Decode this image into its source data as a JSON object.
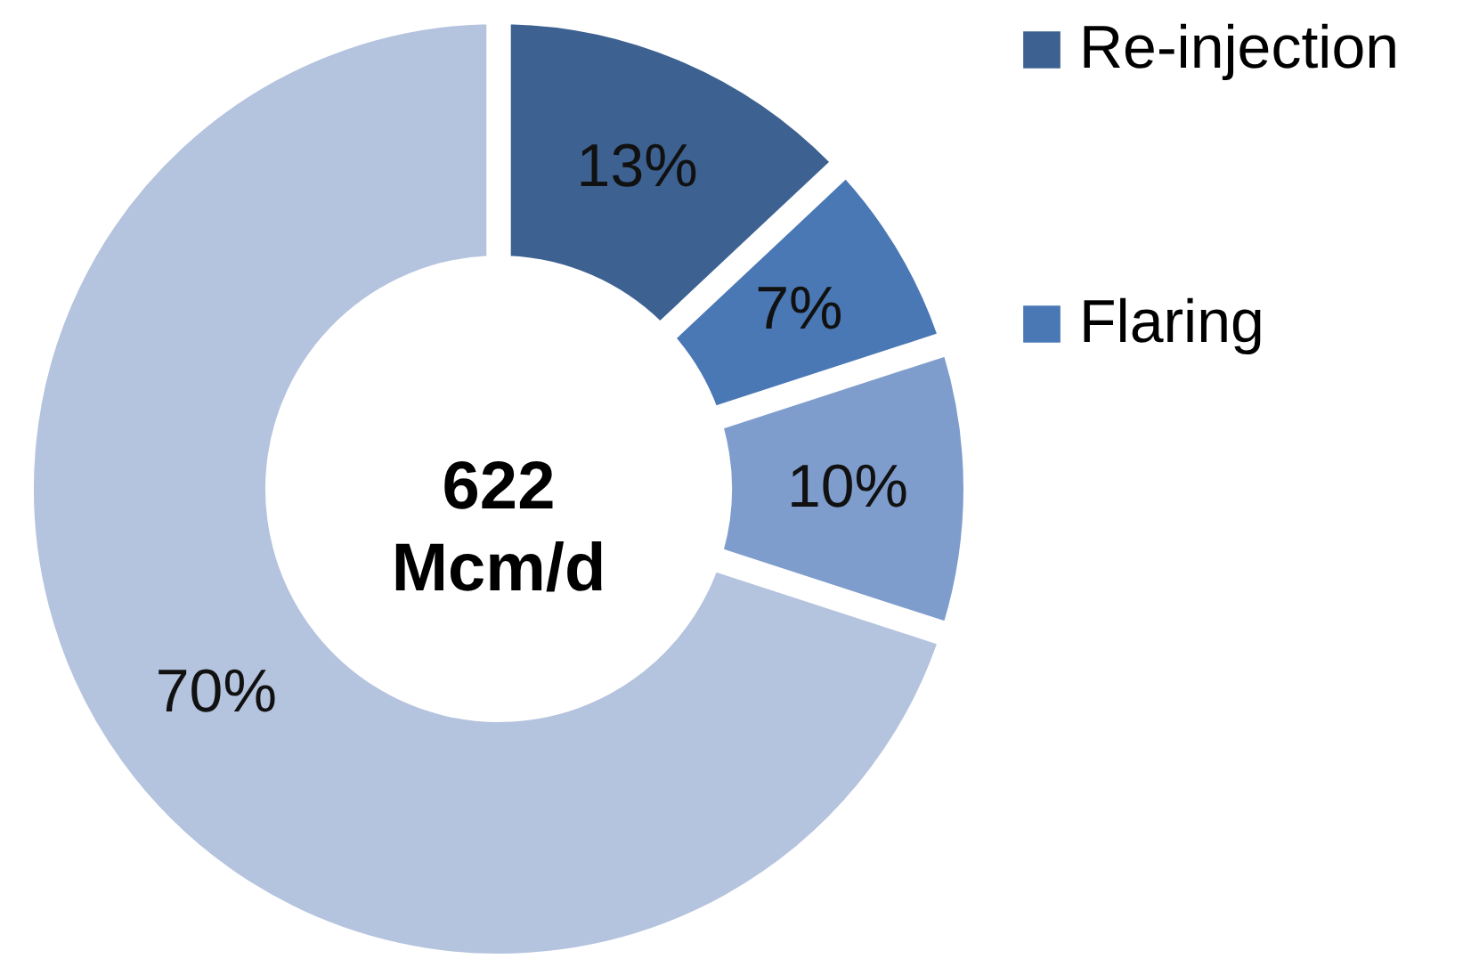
{
  "chart_data": {
    "type": "donut",
    "categories": [
      "Re-injection",
      "Flaring",
      null,
      null
    ],
    "values": [
      13,
      7,
      10,
      70
    ],
    "value_labels": [
      "13%",
      "7%",
      "10%",
      "70%"
    ],
    "colors": [
      "#3d6291",
      "#4a78b5",
      "#7f9dcc",
      "#b4c3de"
    ],
    "annotations": [
      "622 Mcm/d"
    ],
    "legend": "right"
  }
}
